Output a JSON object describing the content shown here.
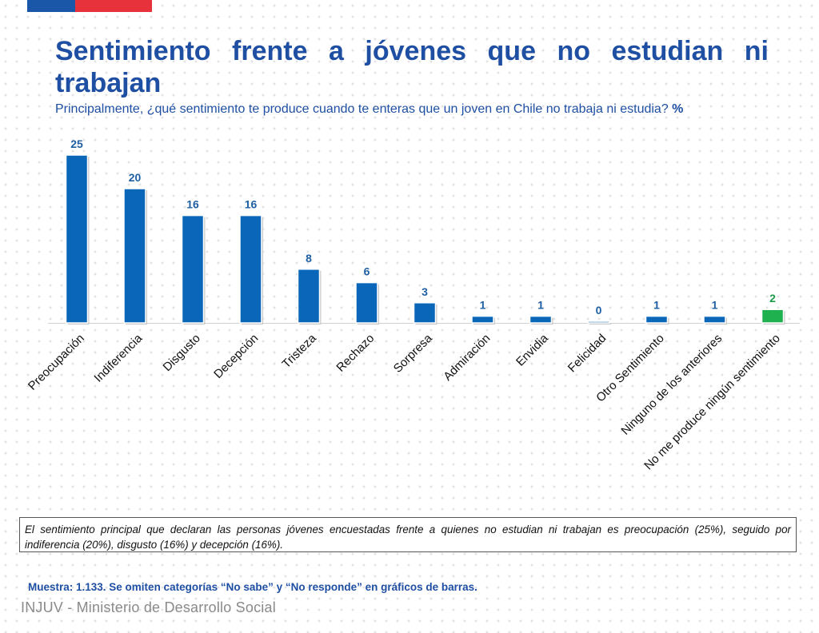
{
  "header": {
    "title": "Sentimiento frente a jóvenes que no estudian ni trabajan",
    "subtitle": "Principalmente, ¿qué sentimiento te produce cuando te enteras que un joven en Chile no trabaja ni estudia?",
    "subtitle_unit": "%"
  },
  "chart_data": {
    "type": "bar",
    "categories": [
      "Preocupación",
      "Indiferencia",
      "Disgusto",
      "Decepción",
      "Tristeza",
      "Rechazo",
      "Sorpresa",
      "Admiración",
      "Envidia",
      "Felicidad",
      "Otro Sentimiento",
      "Ninguno de los anteriores",
      "No me produce ningún sentimiento"
    ],
    "values": [
      25,
      20,
      16,
      16,
      8,
      6,
      3,
      1,
      1,
      0,
      1,
      1,
      2
    ],
    "title": "",
    "xlabel": "",
    "ylabel": "",
    "ylim": [
      0,
      25
    ],
    "colors": {
      "default": "#0a66b8",
      "highlight": "#1fb04f",
      "default_label": "#1f5fa3",
      "highlight_label": "#1a9a47"
    },
    "highlight_index": 12,
    "grid": false,
    "legend": "none"
  },
  "note": {
    "text": "El sentimiento principal que declaran las personas jóvenes encuestadas frente a quienes no estudian ni trabajan es preocupación (25%), seguido por indiferencia (20%), disgusto (16%) y decepción (16%)."
  },
  "sample_note": "Muestra: 1.133. Se omiten categorías “No sabe” y “No responde” en gráficos de barras.",
  "footer": {
    "org": "INJUV - Ministerio de Desarrollo Social"
  }
}
